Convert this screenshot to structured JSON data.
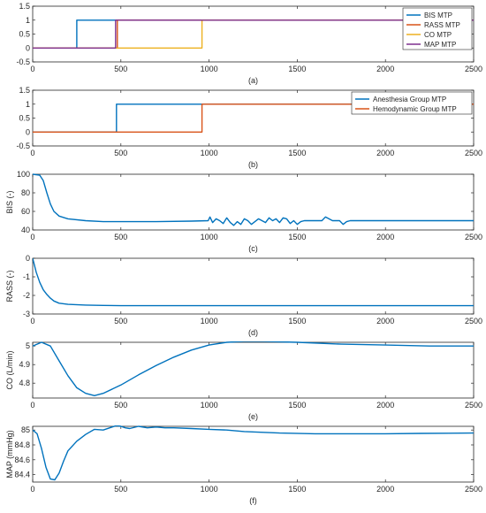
{
  "chart_data": [
    {
      "type": "line",
      "caption": "(a)",
      "xlabel": "",
      "ylabel": "",
      "xlim": [
        0,
        2500
      ],
      "ylim": [
        -0.5,
        1.5
      ],
      "xticks": [
        0,
        500,
        1000,
        1500,
        2000,
        2500
      ],
      "yticks": [
        -0.5,
        0,
        0.5,
        1,
        1.5
      ],
      "ytick_labels": [
        "-0.5",
        "0",
        "0.5",
        "1",
        "1.5"
      ],
      "legend_position": "top-right",
      "series": [
        {
          "name": "BIS MTP",
          "color": "#0072BD",
          "x": [
            0,
            250,
            250,
            2500
          ],
          "y": [
            0,
            0,
            1,
            1
          ]
        },
        {
          "name": "RASS MTP",
          "color": "#D95319",
          "x": [
            0,
            480,
            480,
            2500
          ],
          "y": [
            0,
            0,
            1,
            1
          ]
        },
        {
          "name": "CO MTP",
          "color": "#EDB120",
          "x": [
            0,
            960,
            960,
            2500
          ],
          "y": [
            0,
            0,
            1,
            1
          ]
        },
        {
          "name": "MAP MTP",
          "color": "#7E2F8E",
          "x": [
            0,
            470,
            470,
            2500
          ],
          "y": [
            0,
            0,
            1,
            1
          ]
        }
      ]
    },
    {
      "type": "line",
      "caption": "(b)",
      "xlabel": "",
      "ylabel": "",
      "xlim": [
        0,
        2500
      ],
      "ylim": [
        -0.5,
        1.5
      ],
      "xticks": [
        0,
        500,
        1000,
        1500,
        2000,
        2500
      ],
      "yticks": [
        -0.5,
        0,
        0.5,
        1,
        1.5
      ],
      "ytick_labels": [
        "-0.5",
        "0",
        "0.5",
        "1",
        "1.5"
      ],
      "legend_position": "top-right",
      "series": [
        {
          "name": "Anesthesia Group MTP",
          "color": "#0072BD",
          "x": [
            0,
            475,
            475,
            2500
          ],
          "y": [
            0,
            0,
            1,
            1
          ]
        },
        {
          "name": "Hemodynamic Group MTP",
          "color": "#D95319",
          "x": [
            0,
            960,
            960,
            2500
          ],
          "y": [
            0,
            0,
            1,
            1
          ]
        }
      ]
    },
    {
      "type": "line",
      "caption": "(c)",
      "xlabel": "",
      "ylabel": "BIS (-)",
      "xlim": [
        0,
        2500
      ],
      "ylim": [
        40,
        100
      ],
      "xticks": [
        0,
        500,
        1000,
        1500,
        2000,
        2500
      ],
      "yticks": [
        40,
        60,
        80,
        100
      ],
      "ytick_labels": [
        "40",
        "60",
        "80",
        "100"
      ],
      "series": [
        {
          "color": "#0072BD",
          "x": [
            0,
            40,
            60,
            80,
            100,
            120,
            150,
            200,
            300,
            400,
            500,
            700,
            900,
            995,
            1005,
            1020,
            1040,
            1060,
            1080,
            1100,
            1120,
            1140,
            1160,
            1180,
            1200,
            1220,
            1240,
            1260,
            1280,
            1300,
            1320,
            1340,
            1360,
            1380,
            1400,
            1420,
            1440,
            1460,
            1480,
            1500,
            1520,
            1540,
            1600,
            1640,
            1660,
            1680,
            1700,
            1740,
            1760,
            1780,
            1800,
            2000,
            2500
          ],
          "y": [
            100,
            99,
            93,
            80,
            68,
            60,
            55,
            52,
            50,
            49,
            49,
            49,
            49.5,
            50,
            54,
            48,
            52,
            50,
            47,
            53,
            48,
            45,
            49,
            46,
            52,
            50,
            46,
            49,
            52,
            50,
            48,
            53,
            50,
            52,
            48,
            53,
            52,
            47,
            50,
            46,
            49,
            50,
            50,
            50,
            54,
            52,
            50,
            50,
            46,
            49,
            50,
            50,
            50
          ]
        }
      ]
    },
    {
      "type": "line",
      "caption": "(d)",
      "xlabel": "",
      "ylabel": "RASS (-)",
      "xlim": [
        0,
        2500
      ],
      "ylim": [
        -3,
        0
      ],
      "xticks": [
        0,
        500,
        1000,
        1500,
        2000,
        2500
      ],
      "yticks": [
        -3,
        -2,
        -1,
        0
      ],
      "ytick_labels": [
        "-3",
        "-2",
        "-1",
        "0"
      ],
      "series": [
        {
          "color": "#0072BD",
          "x": [
            0,
            20,
            40,
            60,
            80,
            100,
            120,
            150,
            200,
            300,
            400,
            500,
            1000,
            1500,
            2000,
            2500
          ],
          "y": [
            0,
            -0.75,
            -1.3,
            -1.7,
            -1.95,
            -2.15,
            -2.3,
            -2.42,
            -2.48,
            -2.52,
            -2.54,
            -2.55,
            -2.55,
            -2.55,
            -2.55,
            -2.55
          ]
        }
      ]
    },
    {
      "type": "line",
      "caption": "(e)",
      "xlabel": "",
      "ylabel": "CO (L/min)",
      "xlim": [
        0,
        2500
      ],
      "ylim": [
        4.72,
        5.02
      ],
      "xticks": [
        0,
        500,
        1000,
        1500,
        2000,
        2500
      ],
      "yticks": [
        4.8,
        4.9,
        5
      ],
      "ytick_labels": [
        "4.8",
        "4.9",
        "5"
      ],
      "series": [
        {
          "color": "#0072BD",
          "x": [
            0,
            50,
            100,
            150,
            200,
            250,
            300,
            350,
            400,
            500,
            600,
            700,
            800,
            900,
            1000,
            1100,
            1200,
            1300,
            1500,
            1750,
            2000,
            2250,
            2500
          ],
          "y": [
            5.0,
            5.02,
            5.0,
            4.92,
            4.84,
            4.775,
            4.745,
            4.733,
            4.745,
            4.79,
            4.845,
            4.895,
            4.94,
            4.978,
            5.005,
            5.02,
            5.025,
            5.025,
            5.02,
            5.01,
            5.005,
            5.0,
            5.0
          ]
        }
      ]
    },
    {
      "type": "line",
      "caption": "(f)",
      "xlabel": "",
      "ylabel": "MAP (mmHg)",
      "xlim": [
        0,
        2500
      ],
      "ylim": [
        84.3,
        85.05
      ],
      "xticks": [
        0,
        500,
        1000,
        1500,
        2000,
        2500
      ],
      "yticks": [
        84.4,
        84.6,
        84.8,
        85
      ],
      "ytick_labels": [
        "84.4",
        "84.6",
        "84.8",
        "85"
      ],
      "series": [
        {
          "color": "#0072BD",
          "x": [
            0,
            25,
            50,
            75,
            100,
            125,
            150,
            175,
            200,
            250,
            300,
            350,
            400,
            450,
            475,
            500,
            525,
            550,
            600,
            650,
            700,
            750,
            800,
            900,
            1000,
            1100,
            1200,
            1400,
            1600,
            1800,
            2000,
            2200,
            2500
          ],
          "y": [
            85.0,
            84.95,
            84.75,
            84.5,
            84.34,
            84.33,
            84.42,
            84.58,
            84.72,
            84.85,
            84.94,
            85.01,
            85.0,
            85.04,
            85.06,
            85.05,
            85.03,
            85.02,
            85.05,
            85.03,
            85.04,
            85.03,
            85.03,
            85.02,
            85.01,
            85.0,
            84.98,
            84.96,
            84.95,
            84.95,
            84.95,
            84.955,
            84.96
          ]
        }
      ]
    }
  ]
}
